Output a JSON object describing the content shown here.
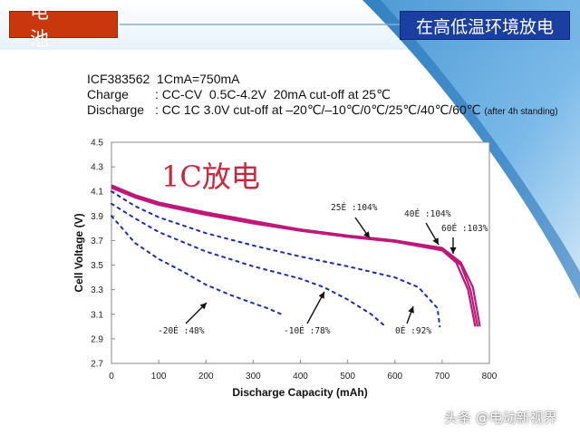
{
  "header": {
    "left_tag": "电 池",
    "right_tag": "在高低温环境放电"
  },
  "info": {
    "line1": "ICF383562  1CmA=750mA",
    "line2_label": "Charge",
    "line2_value": ": CC-CV  0.5C-4.2V  20mA cut-off at 25℃",
    "line3_label": "Discharge",
    "line3_value": ": CC 1C 3.0V cut-off at –20℃/–10℃/0℃/25℃/40℃/60℃",
    "line3_note": "(after 4h standing)"
  },
  "watermark": "头条 @电动新视界",
  "colors": {
    "left_tag": "#c8380c",
    "right_tag": "#1a3fa0",
    "warm_series": "#c0187a",
    "cold_series": "#1a2fb0",
    "annotation": "#d0243c"
  },
  "chart_data": {
    "type": "line",
    "title": "",
    "annotation": "1C放电",
    "xlabel": "Discharge Capacity (mAh)",
    "ylabel": "Cell Voltage (V)",
    "xlim": [
      0,
      800
    ],
    "ylim": [
      2.7,
      4.5
    ],
    "xticks": [
      "0",
      "100",
      "200",
      "300",
      "400",
      "500",
      "600",
      "700",
      "800"
    ],
    "yticks": [
      "2.7",
      "2.9",
      "3.1",
      "3.3",
      "3.5",
      "3.7",
      "3.9",
      "4.1",
      "4.3",
      "4.5"
    ],
    "grid": false,
    "series": [
      {
        "name": "25É :104%",
        "style": "solid",
        "points": [
          [
            0,
            4.15
          ],
          [
            50,
            4.07
          ],
          [
            100,
            4.01
          ],
          [
            200,
            3.93
          ],
          [
            300,
            3.86
          ],
          [
            400,
            3.79
          ],
          [
            500,
            3.74
          ],
          [
            600,
            3.7
          ],
          [
            700,
            3.63
          ],
          [
            740,
            3.5
          ],
          [
            760,
            3.3
          ],
          [
            775,
            3.0
          ]
        ]
      },
      {
        "name": "40É :104%",
        "style": "solid",
        "points": [
          [
            0,
            4.14
          ],
          [
            50,
            4.06
          ],
          [
            100,
            4.0
          ],
          [
            200,
            3.92
          ],
          [
            300,
            3.85
          ],
          [
            400,
            3.79
          ],
          [
            500,
            3.74
          ],
          [
            600,
            3.7
          ],
          [
            700,
            3.64
          ],
          [
            740,
            3.52
          ],
          [
            765,
            3.32
          ],
          [
            780,
            3.0
          ]
        ]
      },
      {
        "name": "60É :103%",
        "style": "solid",
        "points": [
          [
            0,
            4.13
          ],
          [
            50,
            4.05
          ],
          [
            100,
            3.99
          ],
          [
            200,
            3.91
          ],
          [
            300,
            3.84
          ],
          [
            400,
            3.78
          ],
          [
            500,
            3.73
          ],
          [
            600,
            3.69
          ],
          [
            700,
            3.62
          ],
          [
            730,
            3.52
          ],
          [
            755,
            3.3
          ],
          [
            770,
            3.0
          ]
        ]
      },
      {
        "name": "-20É :48%",
        "style": "dashed",
        "points": [
          [
            0,
            3.9
          ],
          [
            50,
            3.68
          ],
          [
            100,
            3.55
          ],
          [
            150,
            3.45
          ],
          [
            200,
            3.34
          ],
          [
            250,
            3.26
          ],
          [
            300,
            3.19
          ],
          [
            330,
            3.15
          ],
          [
            360,
            3.1
          ]
        ]
      },
      {
        "name": "-10É :78%",
        "style": "dashed",
        "points": [
          [
            0,
            4.0
          ],
          [
            50,
            3.88
          ],
          [
            100,
            3.77
          ],
          [
            200,
            3.61
          ],
          [
            300,
            3.49
          ],
          [
            400,
            3.39
          ],
          [
            450,
            3.32
          ],
          [
            500,
            3.22
          ],
          [
            550,
            3.1
          ],
          [
            580,
            3.0
          ]
        ]
      },
      {
        "name": "0É :92%",
        "style": "dashed",
        "points": [
          [
            0,
            4.1
          ],
          [
            50,
            3.98
          ],
          [
            100,
            3.89
          ],
          [
            200,
            3.76
          ],
          [
            300,
            3.66
          ],
          [
            400,
            3.57
          ],
          [
            500,
            3.49
          ],
          [
            600,
            3.4
          ],
          [
            650,
            3.32
          ],
          [
            690,
            3.15
          ],
          [
            695,
            3.0
          ]
        ]
      }
    ],
    "labels": [
      {
        "text": "25É :104%",
        "series": 0
      },
      {
        "text": "40É :104%",
        "series": 1
      },
      {
        "text": "60É :103%",
        "series": 2
      },
      {
        "text": "-20É :48%",
        "series": 3
      },
      {
        "text": "-10É :78%",
        "series": 4
      },
      {
        "text": "0É :92%",
        "series": 5
      }
    ]
  }
}
